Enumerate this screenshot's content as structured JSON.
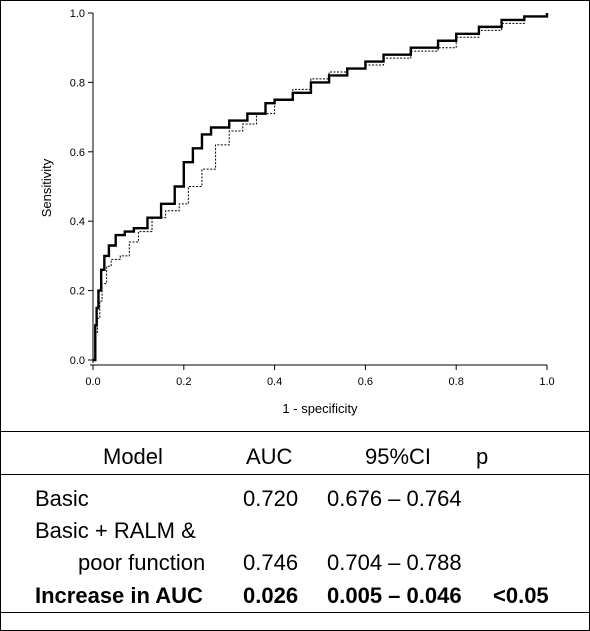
{
  "chart_data": {
    "type": "line",
    "xlabel": "1 - specificity",
    "ylabel": "Sensitivity",
    "xlim": [
      0.0,
      1.0
    ],
    "ylim": [
      0.0,
      1.0
    ],
    "x_ticks": [
      "0.0",
      "0.2",
      "0.4",
      "0.6",
      "0.8",
      "1.0"
    ],
    "y_ticks": [
      "0.0",
      "0.2",
      "0.4",
      "0.6",
      "0.8",
      "1.0"
    ],
    "grid": false,
    "series": [
      {
        "style": "thick solid",
        "color": "#000000",
        "x": [
          0.0,
          0.005,
          0.008,
          0.012,
          0.018,
          0.025,
          0.035,
          0.05,
          0.07,
          0.09,
          0.12,
          0.15,
          0.18,
          0.2,
          0.22,
          0.24,
          0.26,
          0.3,
          0.34,
          0.38,
          0.4,
          0.44,
          0.48,
          0.52,
          0.56,
          0.6,
          0.64,
          0.7,
          0.76,
          0.8,
          0.85,
          0.9,
          0.95,
          1.0
        ],
        "y": [
          0.0,
          0.1,
          0.15,
          0.2,
          0.26,
          0.3,
          0.33,
          0.36,
          0.37,
          0.38,
          0.41,
          0.45,
          0.5,
          0.57,
          0.61,
          0.65,
          0.67,
          0.69,
          0.71,
          0.74,
          0.75,
          0.77,
          0.8,
          0.82,
          0.84,
          0.86,
          0.88,
          0.9,
          0.92,
          0.94,
          0.96,
          0.98,
          0.99,
          1.0
        ]
      },
      {
        "style": "thin dotted",
        "color": "#000000",
        "x": [
          0.0,
          0.006,
          0.01,
          0.015,
          0.02,
          0.03,
          0.04,
          0.06,
          0.08,
          0.1,
          0.13,
          0.16,
          0.19,
          0.21,
          0.24,
          0.27,
          0.3,
          0.33,
          0.36,
          0.4,
          0.44,
          0.48,
          0.52,
          0.56,
          0.6,
          0.64,
          0.7,
          0.76,
          0.8,
          0.85,
          0.9,
          0.95,
          1.0
        ],
        "y": [
          0.0,
          0.08,
          0.12,
          0.17,
          0.22,
          0.27,
          0.29,
          0.3,
          0.34,
          0.37,
          0.41,
          0.43,
          0.45,
          0.5,
          0.55,
          0.62,
          0.66,
          0.68,
          0.71,
          0.75,
          0.78,
          0.81,
          0.83,
          0.84,
          0.85,
          0.87,
          0.89,
          0.9,
          0.93,
          0.95,
          0.97,
          0.99,
          1.0
        ]
      }
    ]
  },
  "table": {
    "headers": [
      "Model",
      "AUC",
      "95%CI",
      "p"
    ],
    "rows": [
      {
        "model": "Basic",
        "auc": "0.720",
        "ci": "0.676 – 0.764",
        "p": ""
      },
      {
        "model": "Basic + RALM &",
        "auc": "",
        "ci": "",
        "p": ""
      },
      {
        "model": "poor function",
        "auc": "0.746",
        "ci": "0.704 – 0.788",
        "p": ""
      },
      {
        "model": "Increase in AUC",
        "auc": "0.026",
        "ci": "0.005 – 0.046",
        "p": "<0.05"
      }
    ]
  }
}
